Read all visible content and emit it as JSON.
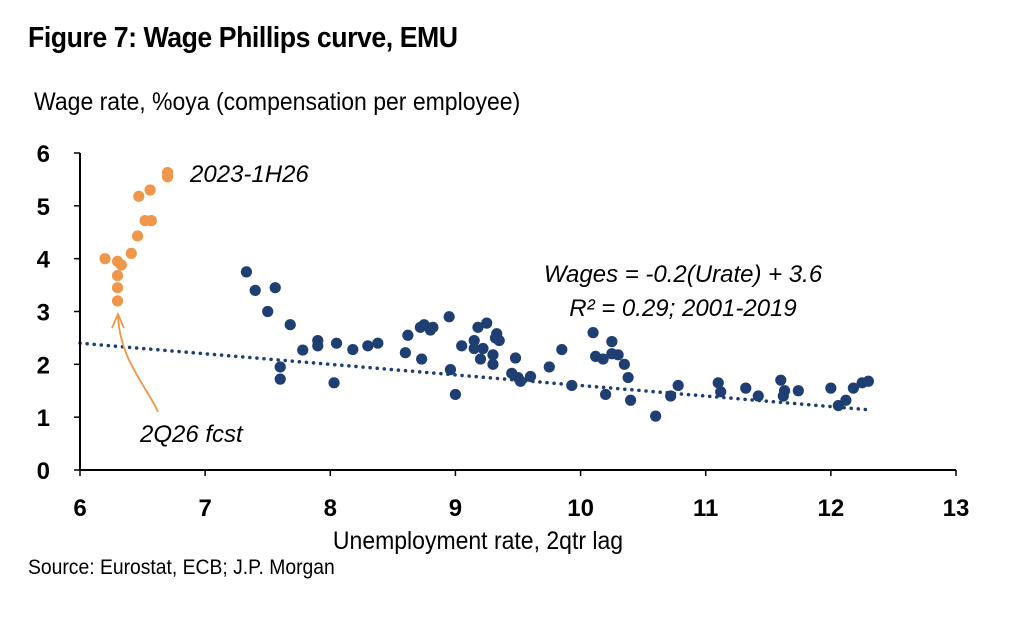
{
  "figure": {
    "title": "Figure 7: Wage Phillips curve, EMU",
    "subtitle": "Wage rate, %oya (compensation per employee)",
    "source": "Source: Eurostat, ECB; J.P. Morgan"
  },
  "chart_data": {
    "type": "scatter",
    "xlabel": "Unemployment rate, 2qtr lag",
    "ylabel": "Wage rate, %oya (compensation per employee)",
    "xlim": [
      6,
      13
    ],
    "ylim": [
      0,
      6
    ],
    "x_ticks": [
      "6",
      "7",
      "8",
      "9",
      "10",
      "11",
      "12",
      "13"
    ],
    "y_ticks": [
      "0",
      "1",
      "2",
      "3",
      "4",
      "5",
      "6"
    ],
    "grid": false,
    "colors": {
      "historical": "#1f3f73",
      "forecast": "#f0964a",
      "trendline": "#1f3f73",
      "arrow": "#f0964a",
      "axis": "#000000"
    },
    "series": [
      {
        "label": "2001-2019",
        "points": [
          [
            7.33,
            3.75
          ],
          [
            7.4,
            3.4
          ],
          [
            7.5,
            3.0
          ],
          [
            7.56,
            3.45
          ],
          [
            7.6,
            1.95
          ],
          [
            7.6,
            1.72
          ],
          [
            7.68,
            2.75
          ],
          [
            7.78,
            2.27
          ],
          [
            7.9,
            2.35
          ],
          [
            7.9,
            2.45
          ],
          [
            8.03,
            1.65
          ],
          [
            8.05,
            2.4
          ],
          [
            8.18,
            2.28
          ],
          [
            8.3,
            2.35
          ],
          [
            8.38,
            2.4
          ],
          [
            8.6,
            2.22
          ],
          [
            8.62,
            2.55
          ],
          [
            8.72,
            2.7
          ],
          [
            8.73,
            2.1
          ],
          [
            8.75,
            2.75
          ],
          [
            8.8,
            2.65
          ],
          [
            8.82,
            2.7
          ],
          [
            8.95,
            2.9
          ],
          [
            8.96,
            1.9
          ],
          [
            9.0,
            1.43
          ],
          [
            9.05,
            2.35
          ],
          [
            9.15,
            2.45
          ],
          [
            9.15,
            2.3
          ],
          [
            9.18,
            2.7
          ],
          [
            9.2,
            2.1
          ],
          [
            9.22,
            2.3
          ],
          [
            9.25,
            2.78
          ],
          [
            9.3,
            2.0
          ],
          [
            9.3,
            2.18
          ],
          [
            9.32,
            2.5
          ],
          [
            9.33,
            2.58
          ],
          [
            9.35,
            2.45
          ],
          [
            9.45,
            1.83
          ],
          [
            9.48,
            2.12
          ],
          [
            9.5,
            1.75
          ],
          [
            9.52,
            1.68
          ],
          [
            9.6,
            1.77
          ],
          [
            9.75,
            1.95
          ],
          [
            9.85,
            2.28
          ],
          [
            9.93,
            1.6
          ],
          [
            10.1,
            2.6
          ],
          [
            10.12,
            2.15
          ],
          [
            10.18,
            2.1
          ],
          [
            10.2,
            1.43
          ],
          [
            10.25,
            2.43
          ],
          [
            10.25,
            2.2
          ],
          [
            10.3,
            2.18
          ],
          [
            10.35,
            2.0
          ],
          [
            10.38,
            1.75
          ],
          [
            10.4,
            1.32
          ],
          [
            10.6,
            1.02
          ],
          [
            10.72,
            1.4
          ],
          [
            10.78,
            1.6
          ],
          [
            11.1,
            1.65
          ],
          [
            11.12,
            1.48
          ],
          [
            11.32,
            1.55
          ],
          [
            11.42,
            1.4
          ],
          [
            11.6,
            1.7
          ],
          [
            11.62,
            1.4
          ],
          [
            11.63,
            1.5
          ],
          [
            11.74,
            1.5
          ],
          [
            12.0,
            1.55
          ],
          [
            12.06,
            1.22
          ],
          [
            12.12,
            1.32
          ],
          [
            12.18,
            1.55
          ],
          [
            12.25,
            1.65
          ],
          [
            12.3,
            1.68
          ]
        ]
      },
      {
        "label": "2023-1H26",
        "points": [
          [
            6.2,
            4.0
          ],
          [
            6.3,
            3.95
          ],
          [
            6.33,
            3.88
          ],
          [
            6.3,
            3.68
          ],
          [
            6.3,
            3.45
          ],
          [
            6.3,
            3.2
          ],
          [
            6.41,
            4.1
          ],
          [
            6.46,
            4.43
          ],
          [
            6.47,
            5.18
          ],
          [
            6.52,
            4.72
          ],
          [
            6.57,
            4.72
          ],
          [
            6.56,
            5.3
          ],
          [
            6.7,
            5.55
          ],
          [
            6.7,
            5.63
          ]
        ]
      }
    ],
    "trendline": {
      "slope": -0.2,
      "intercept": 3.6,
      "x_range": [
        6,
        12.3
      ]
    },
    "annotations": {
      "equation": "Wages = -0.2(Urate) + 3.6",
      "r2": "R² = 0.29; 2001-2019",
      "forecast_label": "2023-1H26",
      "arrow_label": "2Q26 fcst"
    }
  }
}
